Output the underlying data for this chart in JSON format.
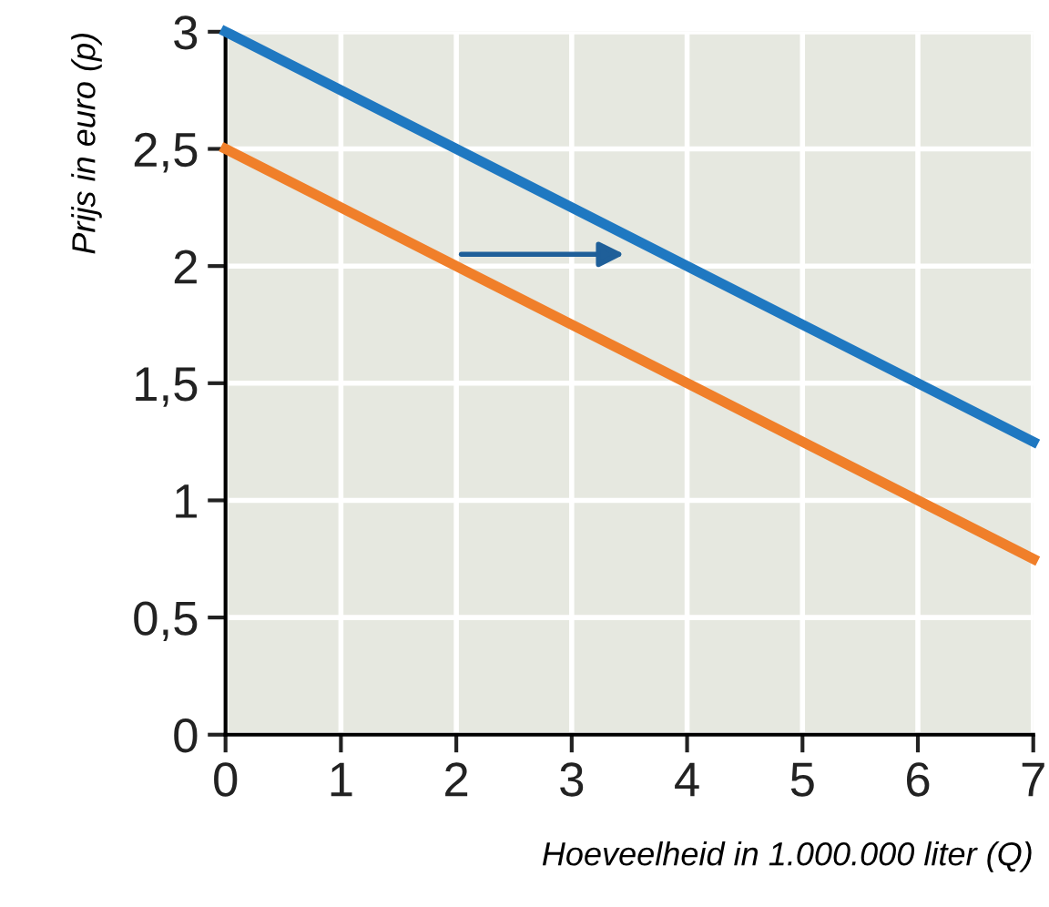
{
  "chart_data": {
    "type": "line",
    "xlabel": "Hoeveelheid in 1.000.000 liter (Q)",
    "ylabel": "Prijs in euro (p)",
    "x": [
      0,
      7
    ],
    "series": [
      {
        "color": "#1f78c1",
        "values": [
          3,
          1.25
        ]
      },
      {
        "color": "#f07f2a",
        "values": [
          2.5,
          0.75
        ]
      }
    ],
    "xlim": [
      0,
      7
    ],
    "ylim": [
      0,
      3
    ],
    "xticks": [
      0,
      1,
      2,
      3,
      4,
      5,
      6,
      7
    ],
    "yticks": [
      0,
      {
        "value": 0.5,
        "label": "0,5"
      },
      1,
      {
        "value": 1.5,
        "label": "1,5"
      },
      2,
      {
        "value": 2.5,
        "label": "2,5"
      },
      3
    ],
    "grid": true,
    "marker": "none",
    "line_style": "solid"
  }
}
